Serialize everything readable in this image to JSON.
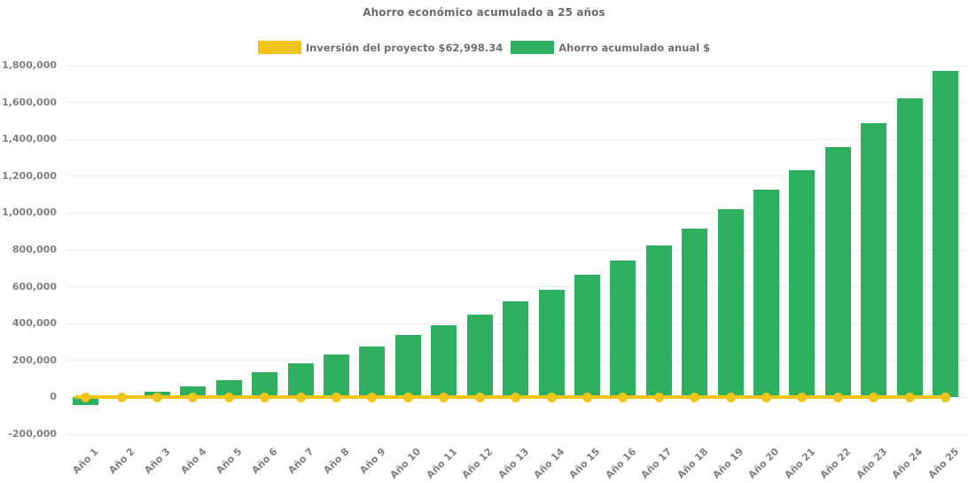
{
  "title": "Ahorro económico acumulado a 25 años",
  "legend": {
    "items": [
      {
        "label": "Inversión del proyecto $62,998.34",
        "color": "#F0C419"
      },
      {
        "label": "Ahorro acumulado anual $",
        "color": "#2EB05E"
      }
    ]
  },
  "chart_data": {
    "type": "bar",
    "title": "Ahorro económico acumulado a 25 años",
    "categories": [
      "Año 1",
      "Año 2",
      "Año 3",
      "Año 4",
      "Año 5",
      "Año 6",
      "Año 7",
      "Año 8",
      "Año 9",
      "Año 10",
      "Año 11",
      "Año 12",
      "Año 13",
      "Año 14",
      "Año 15",
      "Año 16",
      "Año 17",
      "Año 18",
      "Año 19",
      "Año 20",
      "Año 21",
      "Año 22",
      "Año 23",
      "Año 24",
      "Año 25"
    ],
    "series": [
      {
        "name": "Inversión del proyecto $62,998.34",
        "type": "line",
        "color": "#F0C419",
        "marker": "circle",
        "constant_value": 0,
        "investment_amount_shown_in_label": 62998.34
      },
      {
        "name": "Ahorro acumulado anual $",
        "type": "bar",
        "color": "#2EB05E",
        "values": [
          -43000,
          0,
          30000,
          62000,
          95000,
          136000,
          183000,
          231000,
          277000,
          337000,
          390000,
          450000,
          520000,
          585000,
          663000,
          744000,
          826000,
          917000,
          1021000,
          1128000,
          1234000,
          1356000,
          1489000,
          1622000,
          1769000
        ]
      }
    ],
    "ylim": [
      -200000,
      1800000
    ],
    "ytick_step": 200000,
    "ytick_labels": [
      "1,800,000",
      "1,600,000",
      "1,400,000",
      "1,200,000",
      "1,000,000",
      "800,000",
      "600,000",
      "400,000",
      "200,000",
      "0",
      "-200,000"
    ],
    "xlabel": "",
    "ylabel": "",
    "grid": "faint-horizontal",
    "legend_position": "top",
    "x_label_rotation_deg": -45
  }
}
